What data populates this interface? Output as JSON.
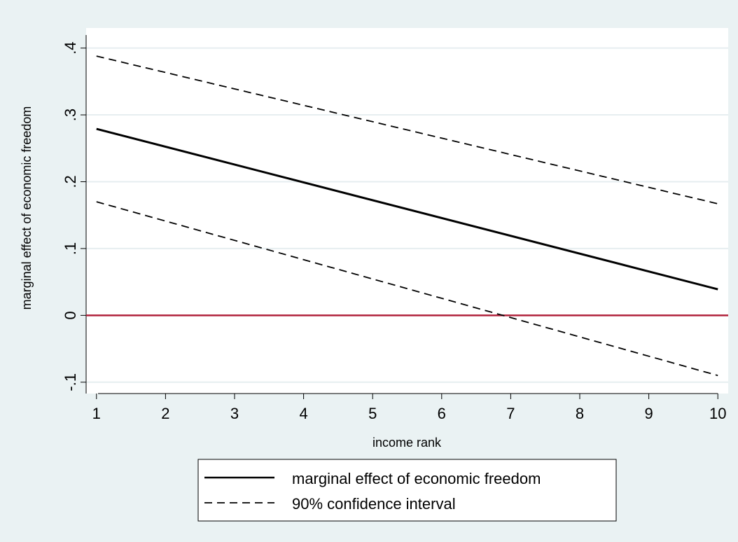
{
  "chart_data": {
    "type": "line",
    "xlabel": "income rank",
    "ylabel": "marginal effect of economic freedom",
    "xlim": [
      0.85,
      10.15
    ],
    "ylim": [
      -0.117,
      0.43
    ],
    "x_ticks": [
      1,
      2,
      3,
      4,
      5,
      6,
      7,
      8,
      9,
      10
    ],
    "x_tick_labels": [
      "1",
      "2",
      "3",
      "4",
      "5",
      "6",
      "7",
      "8",
      "9",
      "10"
    ],
    "y_ticks": [
      -0.1,
      0,
      0.1,
      0.2,
      0.3,
      0.4
    ],
    "y_tick_labels": [
      "-.1",
      "0",
      ".1",
      ".2",
      ".3",
      ".4"
    ],
    "grid": "horizontal",
    "series": [
      {
        "name": "marginal effect of economic freedom",
        "style": "solid",
        "x": [
          1,
          10
        ],
        "y": [
          0.279,
          0.039
        ]
      },
      {
        "name": "90% confidence interval",
        "style": "dashed",
        "x": [
          1,
          10
        ],
        "y": [
          0.388,
          0.167
        ]
      },
      {
        "name": "",
        "style": "dashed",
        "x": [
          1,
          10
        ],
        "y": [
          0.17,
          -0.09
        ]
      }
    ],
    "reference_line": {
      "y": 0,
      "color": "#b0203a"
    },
    "legend": {
      "position": "bottom",
      "entries": [
        {
          "label": "marginal effect of economic freedom",
          "style": "solid"
        },
        {
          "label": "90% confidence interval",
          "style": "dashed"
        }
      ]
    }
  },
  "colors": {
    "background": "#eaf2f3",
    "plot_background": "#ffffff",
    "gridline": "#e6eef0",
    "line": "#000000",
    "zero_line": "#b0203a"
  }
}
